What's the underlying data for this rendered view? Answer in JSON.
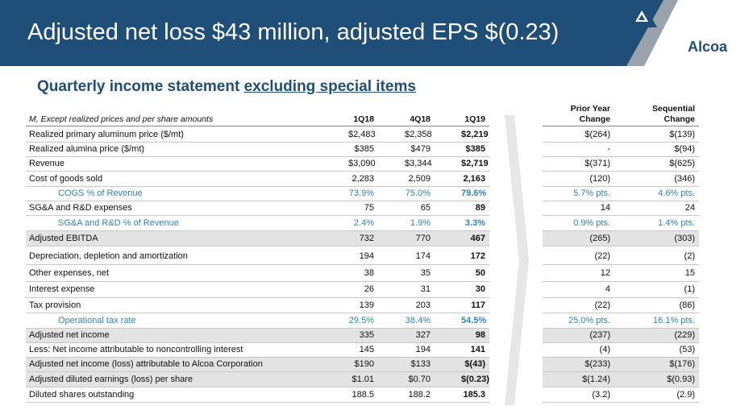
{
  "header": {
    "title": "Adjusted net loss $43 million, adjusted EPS $(0.23)",
    "brand": "Alcoa"
  },
  "subtitle": {
    "part1": "Quarterly income statement ",
    "part2": "excluding special items"
  },
  "table": {
    "units_note": "M, Except realized prices and per share amounts",
    "columns": [
      "1Q18",
      "4Q18",
      "1Q19"
    ],
    "change_columns": [
      {
        "line1": "Prior Year",
        "line2": "Change"
      },
      {
        "line1": "Sequential",
        "line2": "Change"
      }
    ],
    "rows": [
      {
        "label": "Realized primary aluminum price ($/mt)",
        "v1": "$2,483",
        "v2": "$2,358",
        "v3": "$2,219",
        "py": "$(264)",
        "seq": "$(139)"
      },
      {
        "label": "Realized alumina price ($/mt)",
        "v1": "$385",
        "v2": "$479",
        "v3": "$385",
        "py": "-",
        "seq": "$(94)"
      },
      {
        "label": "Revenue",
        "v1": "$3,090",
        "v2": "$3,344",
        "v3": "$2,719",
        "py": "$(371)",
        "seq": "$(625)"
      },
      {
        "label": "Cost of goods sold",
        "v1": "2,283",
        "v2": "2,509",
        "v3": "2,163",
        "py": "(120)",
        "seq": "(346)"
      },
      {
        "label": "COGS % of Revenue",
        "v1": "73.9%",
        "v2": "75.0%",
        "v3": "79.6%",
        "py": "5.7% pts.",
        "seq": "4.6% pts."
      },
      {
        "label": "SG&A and R&D expenses",
        "v1": "75",
        "v2": "65",
        "v3": "89",
        "py": "14",
        "seq": "24"
      },
      {
        "label": "SG&A and R&D % of Revenue",
        "v1": "2.4%",
        "v2": "1.9%",
        "v3": "3.3%",
        "py": "0.9% pts.",
        "seq": "1.4% pts."
      },
      {
        "label": "Adjusted EBITDA",
        "v1": "732",
        "v2": "770",
        "v3": "467",
        "py": "(265)",
        "seq": "(303)"
      },
      {
        "label": "Depreciation, depletion and amortization",
        "v1": "194",
        "v2": "174",
        "v3": "172",
        "py": "(22)",
        "seq": "(2)"
      },
      {
        "label": "Other expenses, net",
        "v1": "38",
        "v2": "35",
        "v3": "50",
        "py": "12",
        "seq": "15"
      },
      {
        "label": "Interest expense",
        "v1": "26",
        "v2": "31",
        "v3": "30",
        "py": "4",
        "seq": "(1)"
      },
      {
        "label": "Tax provision",
        "v1": "139",
        "v2": "203",
        "v3": "117",
        "py": "(22)",
        "seq": "(86)"
      },
      {
        "label": "Operational tax rate",
        "v1": "29.5%",
        "v2": "38.4%",
        "v3": "54.5%",
        "py": "25.0% pts.",
        "seq": "16.1% pts."
      },
      {
        "label": "Adjusted net income",
        "v1": "335",
        "v2": "327",
        "v3": "98",
        "py": "(237)",
        "seq": "(229)"
      },
      {
        "label": "Less: Net income attributable to noncontrolling interest",
        "v1": "145",
        "v2": "194",
        "v3": "141",
        "py": "(4)",
        "seq": "(53)"
      },
      {
        "label": "Adjusted net income (loss) attributable to Alcoa Corporation",
        "v1": "$190",
        "v2": "$133",
        "v3": "$(43)",
        "py": "$(233)",
        "seq": "$(176)"
      },
      {
        "label": "Adjusted diluted earnings (loss) per share",
        "v1": "$1.01",
        "v2": "$0.70",
        "v3": "$(0.23)",
        "py": "$(1.24)",
        "seq": "$(0.93)"
      },
      {
        "label": "Diluted shares outstanding",
        "v1": "188.5",
        "v2": "188.2",
        "v3": "185.3",
        "py": "(3.2)",
        "seq": "(2.9)"
      }
    ]
  },
  "colors": {
    "banner": "#1f4e79",
    "highlight_text": "#2e86c1",
    "shaded_row": "#e3e3e3"
  }
}
